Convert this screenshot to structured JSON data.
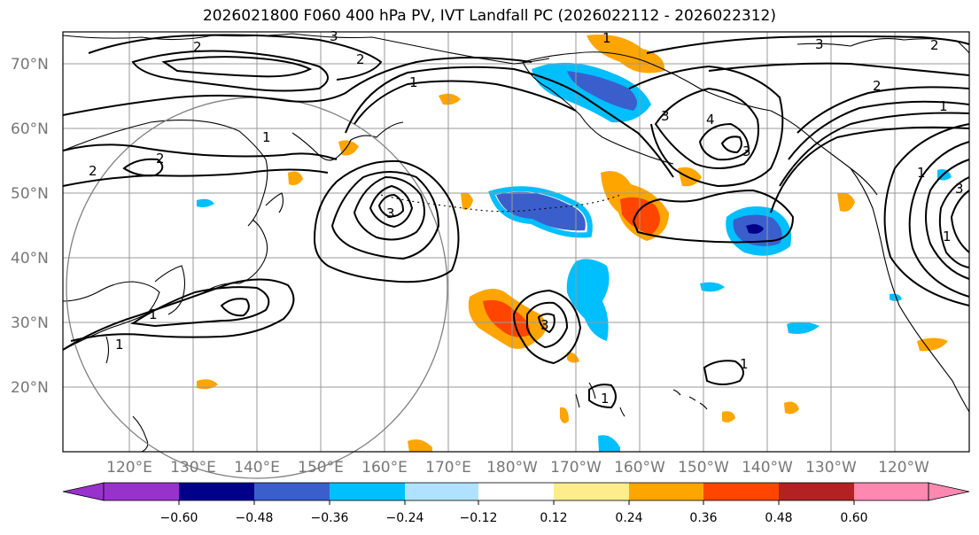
{
  "title": "2026021800 F060 400 hPa PV, IVT Landfall PC (2026022112 - 2026022312)",
  "lat_labels": [
    "70°N",
    "60°N",
    "50°N",
    "40°N",
    "30°N",
    "20°N"
  ],
  "lon_labels": [
    "120°E",
    "130°E",
    "140°E",
    "150°E",
    "160°E",
    "170°E",
    "180°W",
    "170°W",
    "160°W",
    "150°W",
    "140°W",
    "130°W",
    "120°W"
  ],
  "colorbar": {
    "ticks": [
      "−0.60",
      "−0.48",
      "−0.36",
      "−0.24",
      "−0.12",
      "0.12",
      "0.24",
      "0.36",
      "0.48",
      "0.60"
    ],
    "colors": [
      "#9932cc",
      "#00008b",
      "#3a5fcd",
      "#00bfff",
      "#b0e2ff",
      "#ffffff",
      "#ffec8b",
      "#ffa500",
      "#ff4500",
      "#b22222",
      "#ff88b0"
    ]
  },
  "contour_labels": [
    "2",
    "3",
    "2",
    "2",
    "1",
    "1",
    "2",
    "3",
    "3",
    "1",
    "1",
    "1",
    "3",
    "3",
    "2",
    "4",
    "3",
    "1",
    "1",
    "2",
    "3",
    "1",
    "1",
    "1"
  ],
  "legend_colors": {
    "land_outline": "#000000",
    "grid": "#999999",
    "contour": "#000000",
    "circle": "#808080"
  }
}
